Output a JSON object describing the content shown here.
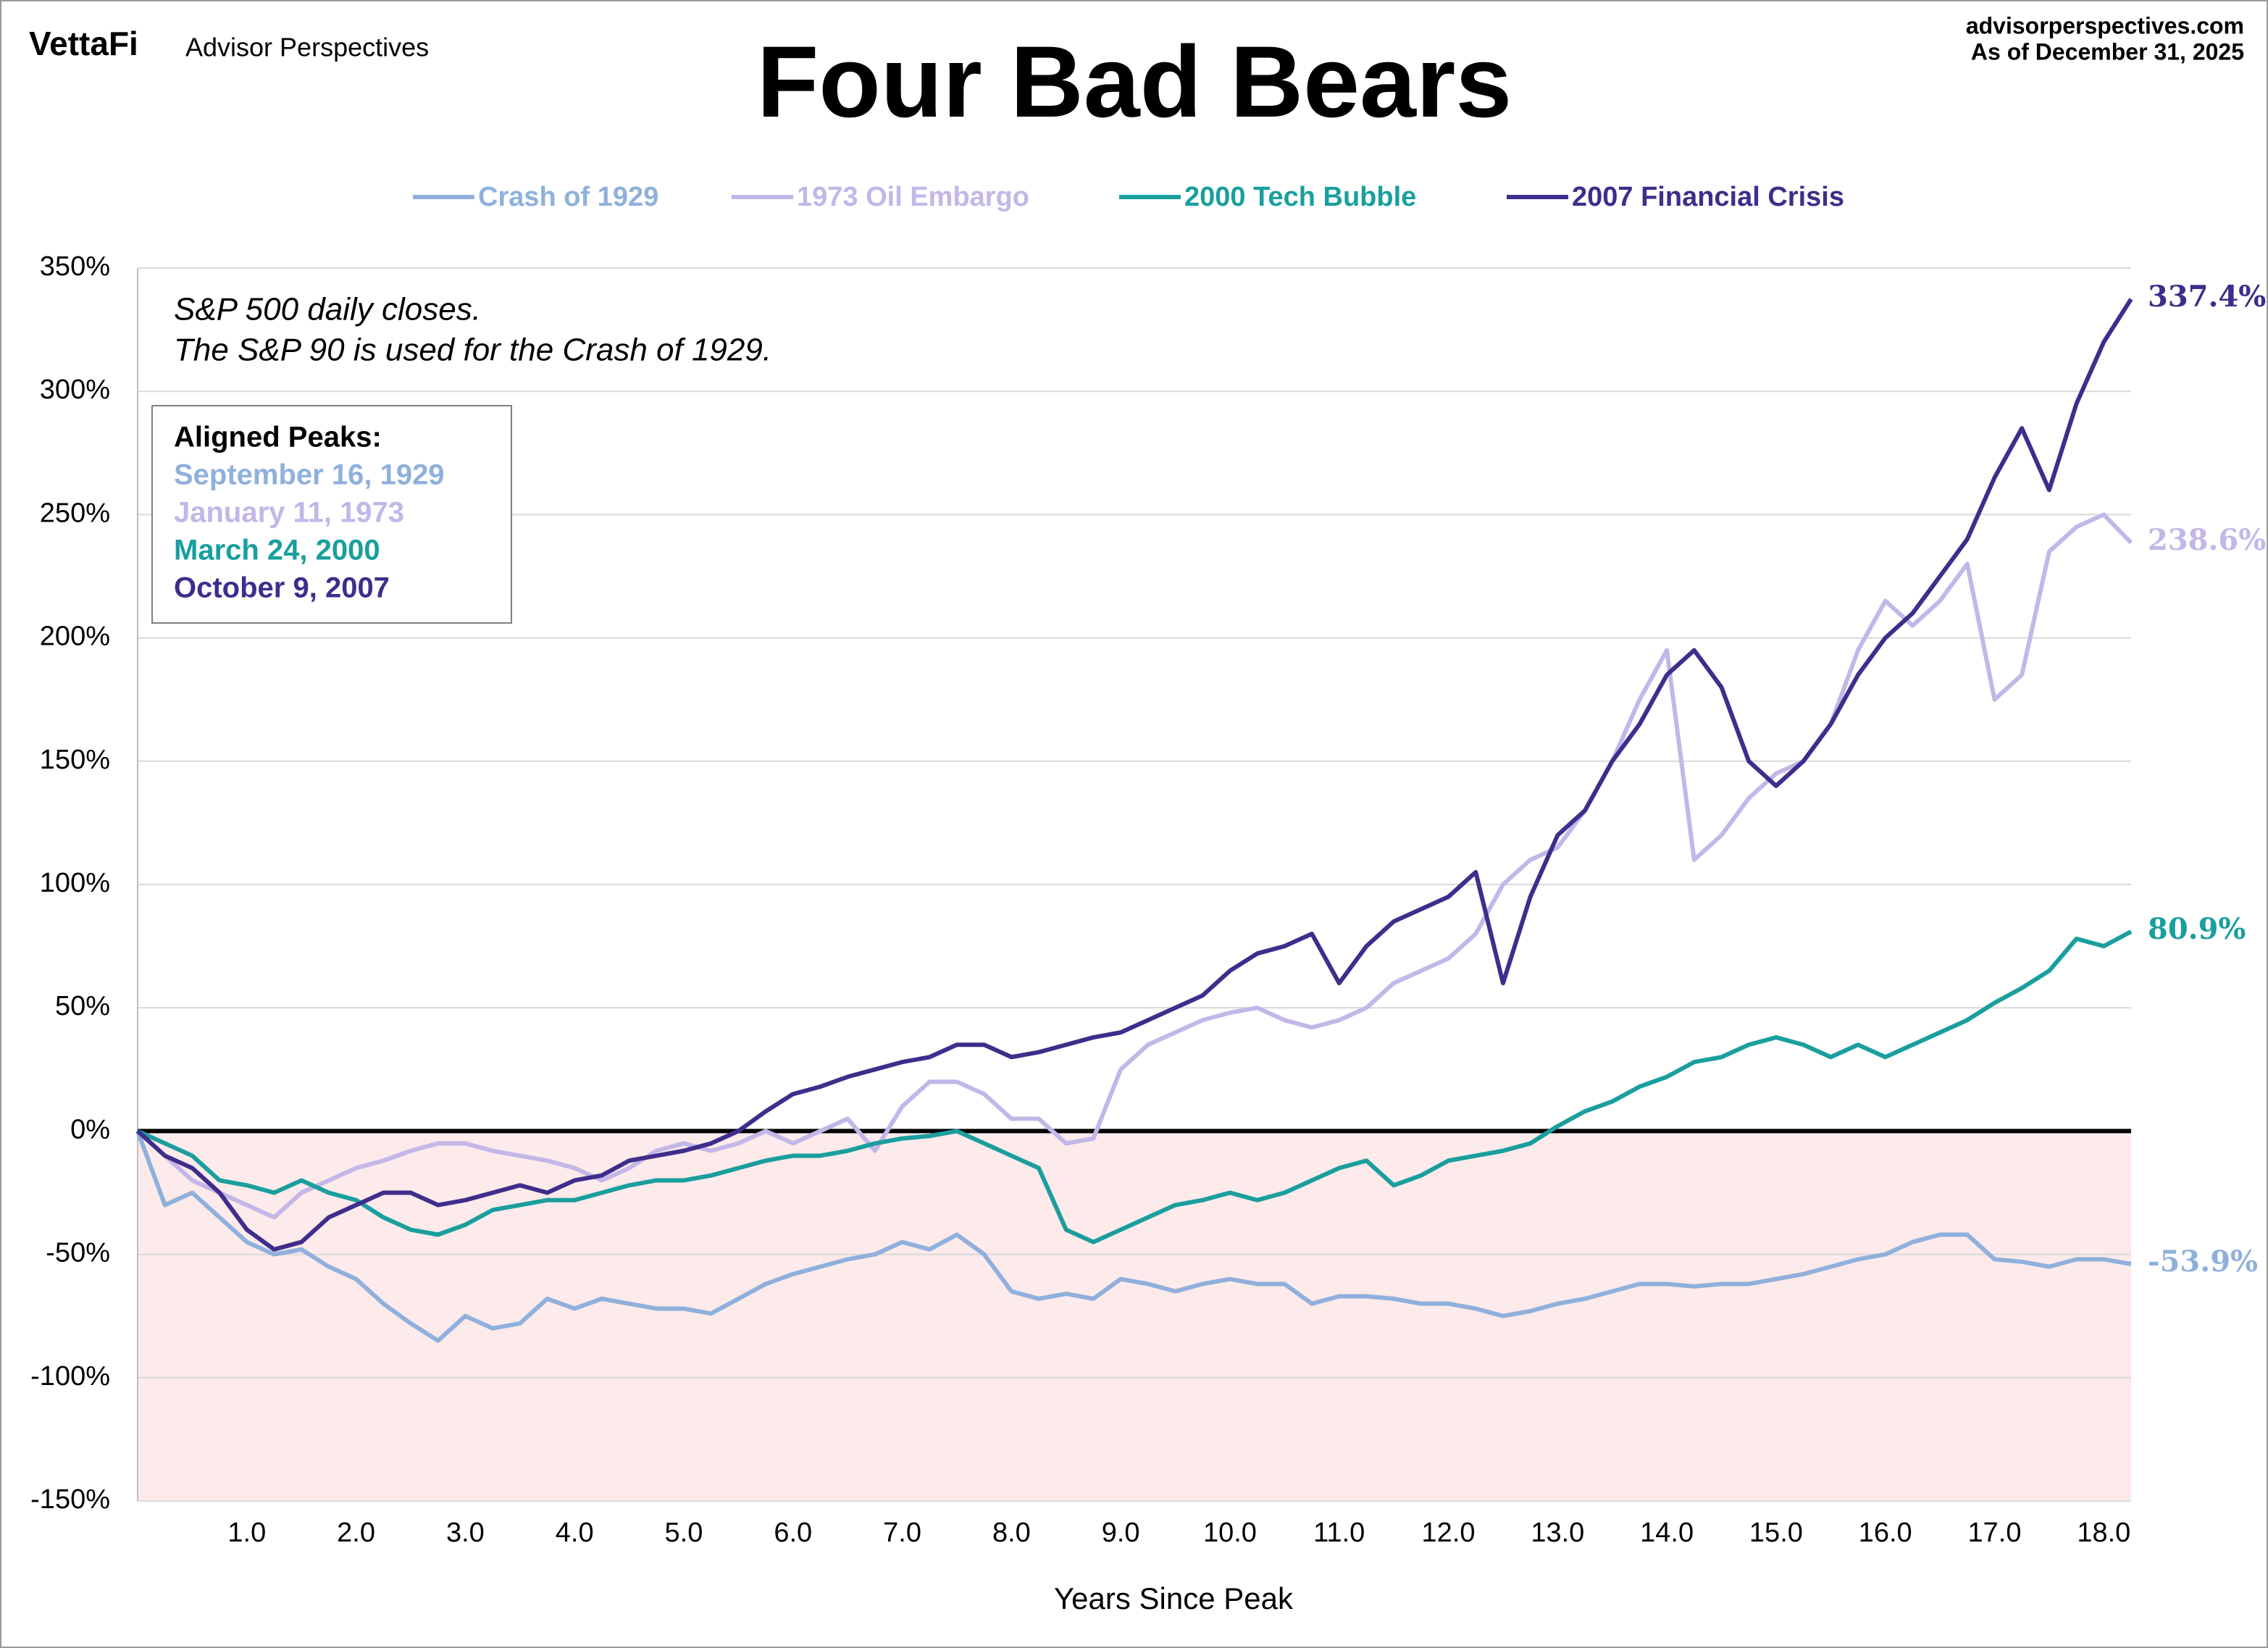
{
  "header": {
    "brand": "VettaFi",
    "brand_sub": "Advisor Perspectives",
    "site": "advisorperspectives.com",
    "as_of": "As of December 31, 2025"
  },
  "chart_data": {
    "type": "line",
    "title": "Four Bad Bears",
    "note": [
      "S&P 500 daily closes.",
      "The S&P 90 is used for the Crash of 1929."
    ],
    "aligned_peaks": {
      "title": "Aligned Peaks:",
      "dates": [
        "September 16, 1929",
        "January 11, 1973",
        "March 24, 2000",
        "October 9, 2007"
      ]
    },
    "xlabel": "Years Since Peak",
    "x": [
      0,
      0.25,
      0.5,
      0.75,
      1,
      1.25,
      1.5,
      1.75,
      2,
      2.25,
      2.5,
      2.75,
      3,
      3.25,
      3.5,
      3.75,
      4,
      4.25,
      4.5,
      4.75,
      5,
      5.25,
      5.5,
      5.75,
      6,
      6.25,
      6.5,
      6.75,
      7,
      7.25,
      7.5,
      7.75,
      8,
      8.25,
      8.5,
      8.75,
      9,
      9.25,
      9.5,
      9.75,
      10,
      10.25,
      10.5,
      10.75,
      11,
      11.25,
      11.5,
      11.75,
      12,
      12.25,
      12.5,
      12.75,
      13,
      13.25,
      13.5,
      13.75,
      14,
      14.25,
      14.5,
      14.75,
      15,
      15.25,
      15.5,
      15.75,
      16,
      16.25,
      16.5,
      16.75,
      17,
      17.25,
      17.5,
      17.75,
      18,
      18.25
    ],
    "series": [
      {
        "name": "Crash of 1929",
        "color": "#8fb0dc",
        "end_label": "-53.9%",
        "values": [
          0,
          -30,
          -25,
          -35,
          -45,
          -50,
          -48,
          -55,
          -60,
          -70,
          -78,
          -85,
          -75,
          -80,
          -78,
          -68,
          -72,
          -68,
          -70,
          -72,
          -72,
          -74,
          -68,
          -62,
          -58,
          -55,
          -52,
          -50,
          -45,
          -48,
          -42,
          -50,
          -65,
          -68,
          -66,
          -68,
          -60,
          -62,
          -65,
          -62,
          -60,
          -62,
          -62,
          -70,
          -67,
          -67,
          -68,
          -70,
          -70,
          -72,
          -75,
          -73,
          -70,
          -68,
          -65,
          -62,
          -62,
          -63,
          -62,
          -62,
          -60,
          -58,
          -55,
          -52,
          -50,
          -45,
          -42,
          -42,
          -52,
          -53,
          -55,
          -52,
          -52,
          -53.9
        ]
      },
      {
        "name": "1973 Oil Embargo",
        "color": "#c3b6e8",
        "end_label": "238.6%",
        "values": [
          0,
          -10,
          -20,
          -25,
          -30,
          -35,
          -25,
          -20,
          -15,
          -12,
          -8,
          -5,
          -5,
          -8,
          -10,
          -12,
          -15,
          -20,
          -15,
          -8,
          -5,
          -8,
          -5,
          0,
          -5,
          0,
          5,
          -8,
          10,
          20,
          20,
          15,
          5,
          5,
          -5,
          -3,
          25,
          35,
          40,
          45,
          48,
          50,
          45,
          42,
          45,
          50,
          60,
          65,
          70,
          80,
          100,
          110,
          115,
          130,
          150,
          175,
          195,
          110,
          120,
          135,
          145,
          150,
          165,
          195,
          215,
          205,
          215,
          230,
          175,
          185,
          235,
          245,
          250,
          238.6
        ]
      },
      {
        "name": "2000 Tech Bubble",
        "color": "#1a9e9e",
        "end_label": "80.9%",
        "values": [
          0,
          -5,
          -10,
          -20,
          -22,
          -25,
          -20,
          -25,
          -28,
          -35,
          -40,
          -42,
          -38,
          -32,
          -30,
          -28,
          -28,
          -25,
          -22,
          -20,
          -20,
          -18,
          -15,
          -12,
          -10,
          -10,
          -8,
          -5,
          -3,
          -2,
          0,
          -5,
          -10,
          -15,
          -40,
          -45,
          -40,
          -35,
          -30,
          -28,
          -25,
          -28,
          -25,
          -20,
          -15,
          -12,
          -22,
          -18,
          -12,
          -10,
          -8,
          -5,
          2,
          8,
          12,
          18,
          22,
          28,
          30,
          35,
          38,
          35,
          30,
          35,
          30,
          35,
          40,
          45,
          52,
          58,
          65,
          78,
          75,
          80.9
        ]
      },
      {
        "name": "2007 Financial Crisis",
        "color": "#3f2d8c",
        "end_label": "337.4%",
        "values": [
          0,
          -10,
          -15,
          -25,
          -40,
          -48,
          -45,
          -35,
          -30,
          -25,
          -25,
          -30,
          -28,
          -25,
          -22,
          -25,
          -20,
          -18,
          -12,
          -10,
          -8,
          -5,
          0,
          8,
          15,
          18,
          22,
          25,
          28,
          30,
          35,
          35,
          30,
          32,
          35,
          38,
          40,
          45,
          50,
          55,
          65,
          72,
          75,
          80,
          60,
          75,
          85,
          90,
          95,
          105,
          60,
          95,
          120,
          130,
          150,
          165,
          185,
          195,
          180,
          150,
          140,
          150,
          165,
          185,
          200,
          210,
          225,
          240,
          265,
          285,
          260,
          295,
          320,
          337.4
        ]
      }
    ],
    "xlim": [
      0,
      18.25
    ],
    "xticks": [
      {
        "value": 1,
        "label": "1.0"
      },
      {
        "value": 2,
        "label": "2.0"
      },
      {
        "value": 3,
        "label": "3.0"
      },
      {
        "value": 4,
        "label": "4.0"
      },
      {
        "value": 5,
        "label": "5.0"
      },
      {
        "value": 6,
        "label": "6.0"
      },
      {
        "value": 7,
        "label": "7.0"
      },
      {
        "value": 8,
        "label": "8.0"
      },
      {
        "value": 9,
        "label": "9.0"
      },
      {
        "value": 10,
        "label": "10.0"
      },
      {
        "value": 11,
        "label": "11.0"
      },
      {
        "value": 12,
        "label": "12.0"
      },
      {
        "value": 13,
        "label": "13.0"
      },
      {
        "value": 14,
        "label": "14.0"
      },
      {
        "value": 15,
        "label": "15.0"
      },
      {
        "value": 16,
        "label": "16.0"
      },
      {
        "value": 17,
        "label": "17.0"
      },
      {
        "value": 18,
        "label": "18.0"
      }
    ],
    "ylim": [
      -150,
      350
    ],
    "yticks": [
      {
        "value": -150,
        "label": "-150%"
      },
      {
        "value": -100,
        "label": "-100%"
      },
      {
        "value": -50,
        "label": "-50%"
      },
      {
        "value": 0,
        "label": "0%"
      },
      {
        "value": 50,
        "label": "50%"
      },
      {
        "value": 100,
        "label": "100%"
      },
      {
        "value": 150,
        "label": "150%"
      },
      {
        "value": 200,
        "label": "200%"
      },
      {
        "value": 250,
        "label": "250%"
      },
      {
        "value": 300,
        "label": "300%"
      },
      {
        "value": 350,
        "label": "350%"
      }
    ],
    "grid": true
  }
}
